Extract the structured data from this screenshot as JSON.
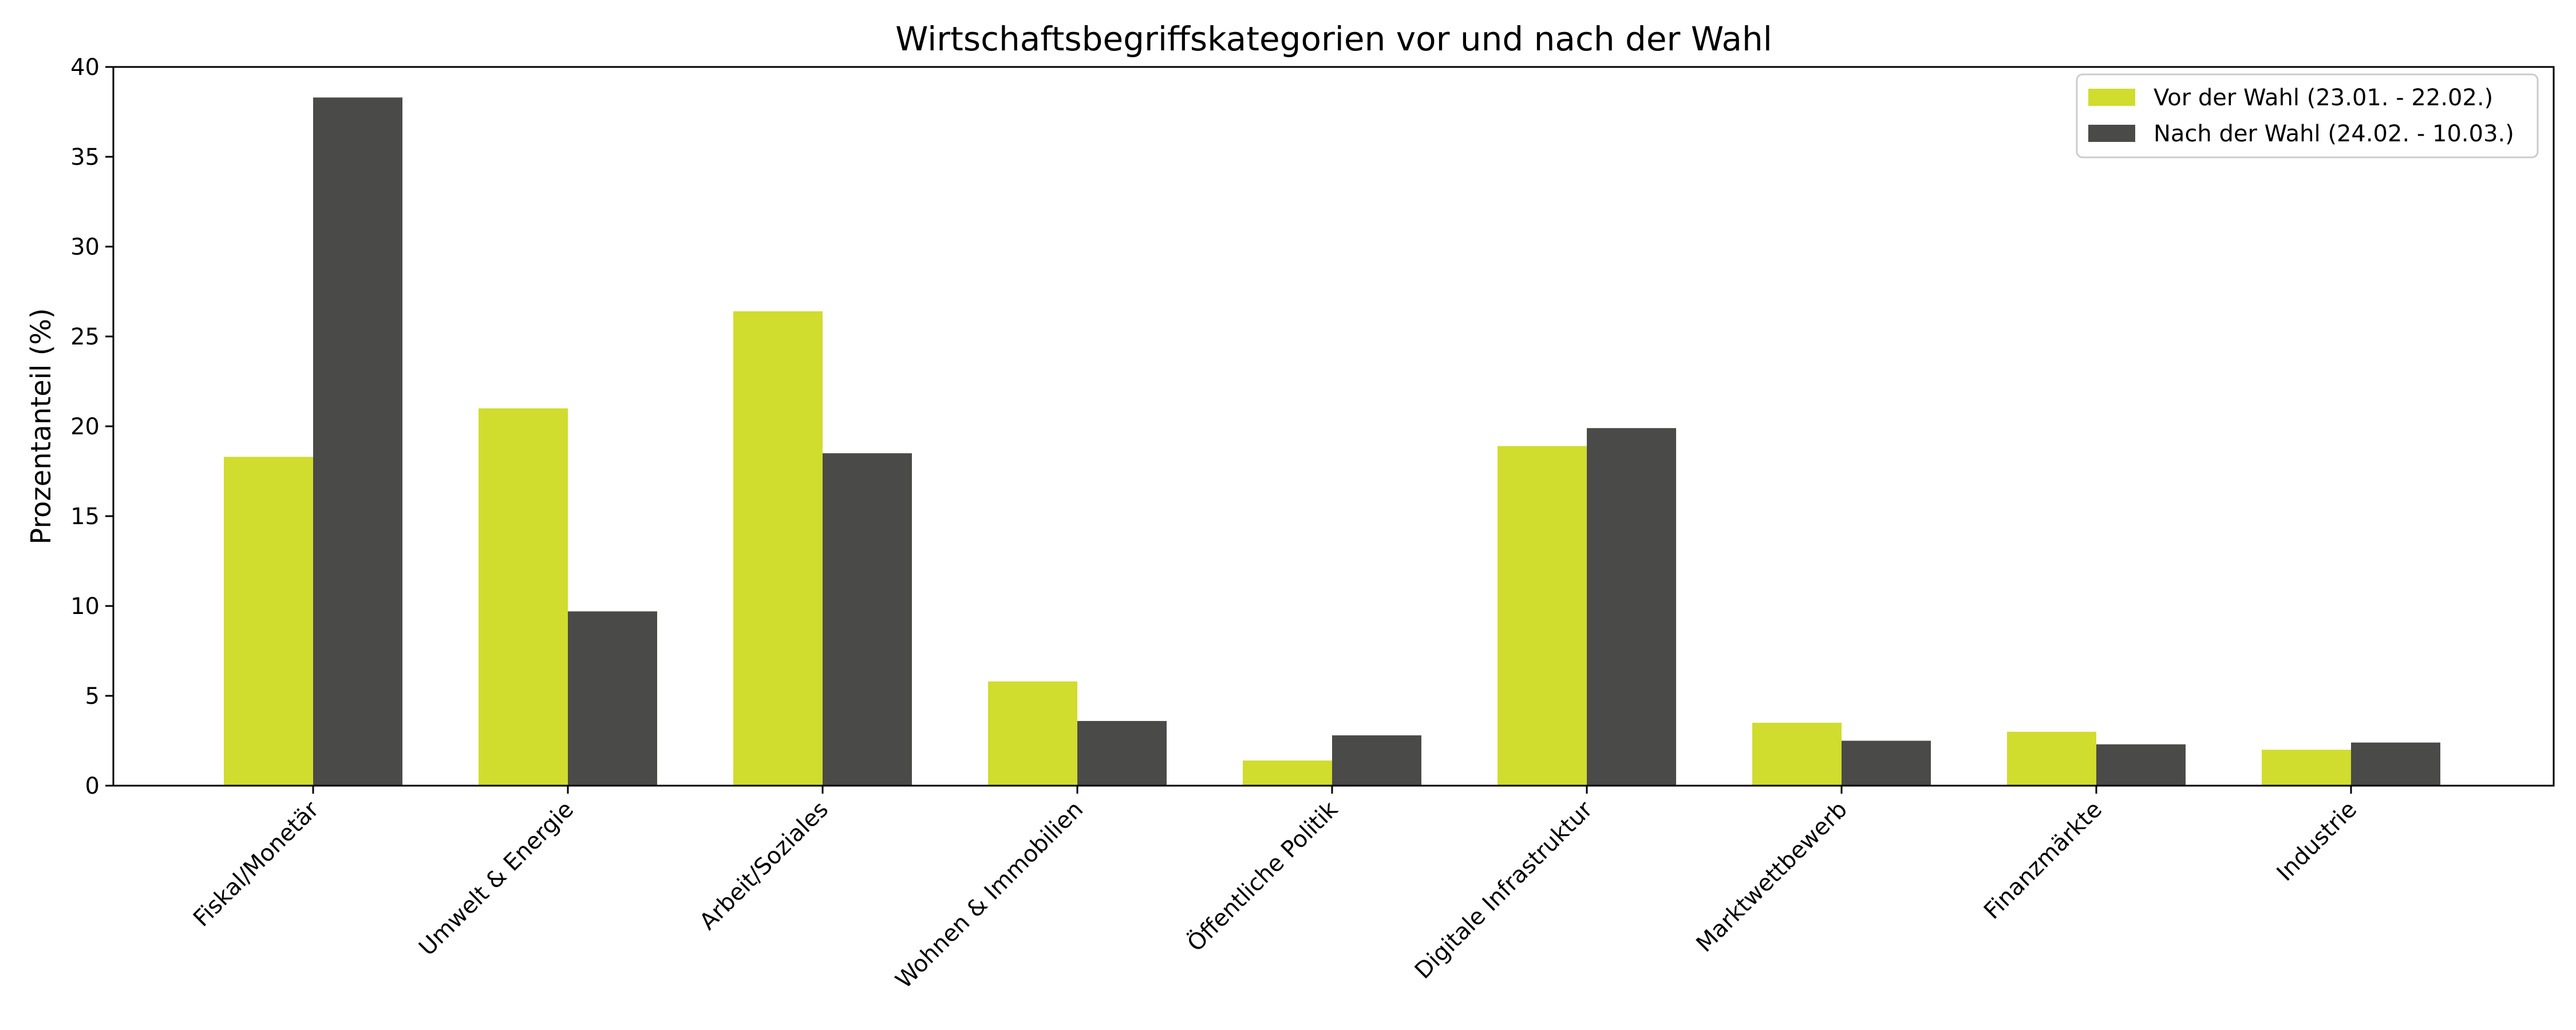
{
  "chart_data": {
    "type": "bar",
    "title": "Wirtschaftsbegriffskategorien vor und nach der Wahl",
    "xlabel": "",
    "ylabel": "Prozentanteil (%)",
    "ylim": [
      0,
      40
    ],
    "yticks": [
      0,
      5,
      10,
      15,
      20,
      25,
      30,
      35,
      40
    ],
    "categories": [
      "Fiskal/Monetär",
      "Umwelt & Energie",
      "Arbeit/Soziales",
      "Wohnen & Immobilien",
      "Öffentliche Politik",
      "Digitale Infrastruktur",
      "Marktwettbewerb",
      "Finanzmärkte",
      "Industrie"
    ],
    "series": [
      {
        "name": "Vor der Wahl (23.01. - 22.02.)",
        "color": "#d0dc2e",
        "values": [
          18.3,
          21.0,
          26.4,
          5.8,
          1.4,
          18.9,
          3.5,
          3.0,
          2.0
        ]
      },
      {
        "name": "Nach der Wahl (24.02. - 10.03.)",
        "color": "#4a4a48",
        "values": [
          38.3,
          9.7,
          18.5,
          3.6,
          2.8,
          19.9,
          2.5,
          2.3,
          2.4
        ]
      }
    ],
    "legend_position": "top-right",
    "grid": false
  }
}
